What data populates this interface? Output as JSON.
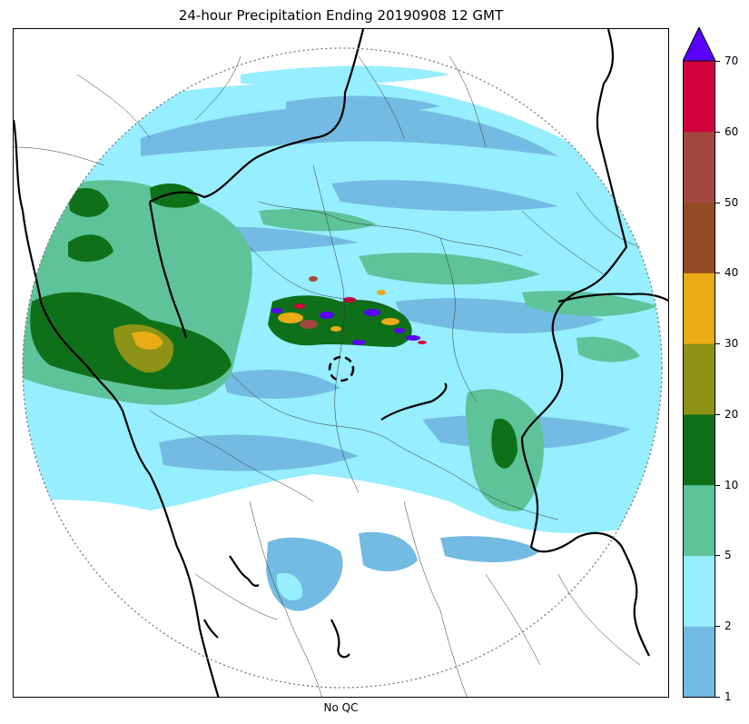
{
  "title": "24-hour Precipitation Ending 20190908 12 GMT",
  "xlabel": "No QC",
  "colorbar": {
    "ticks": [
      "1",
      "2",
      "5",
      "10",
      "20",
      "30",
      "40",
      "50",
      "60",
      "70"
    ],
    "colors": [
      "#74bbe3",
      "#96eeff",
      "#5ec399",
      "#0e7019",
      "#8c9317",
      "#e9ab16",
      "#934b25",
      "#a24840",
      "#d3003e"
    ],
    "extend_color": "#5a00ff"
  },
  "legend_colors": {
    "light_blue": "#74bbe3",
    "cyan": "#96eeff",
    "light_green": "#5ec399",
    "dark_green": "#0e7019",
    "olive": "#8c9317",
    "orange": "#e9ab16"
  }
}
